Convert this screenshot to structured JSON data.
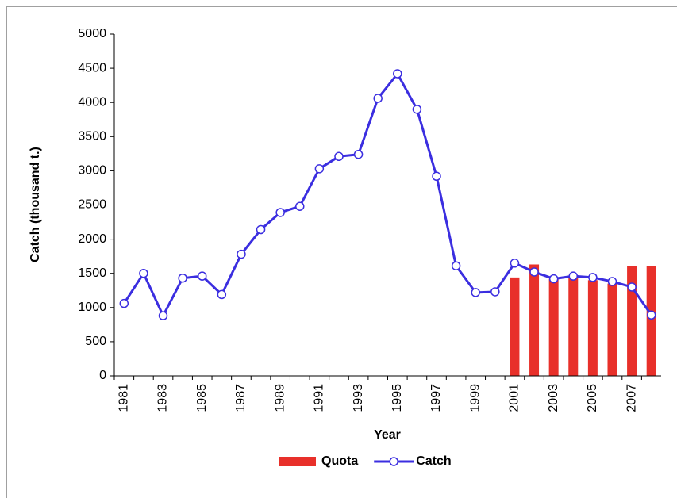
{
  "chart_data": {
    "type": "combo",
    "x_label": "Year",
    "y_label": "Catch  (thousand  t.)",
    "categories": [
      "1981",
      null,
      "1983",
      null,
      "1985",
      null,
      "1987",
      null,
      "1989",
      null,
      "1991",
      null,
      "1993",
      null,
      "1995",
      null,
      "1997",
      null,
      "1999",
      null,
      "2001",
      null,
      "2003",
      null,
      "2005",
      null,
      "2007",
      null
    ],
    "series": [
      {
        "name": "Quota",
        "type": "bar",
        "color": "#e8302a",
        "values": [
          null,
          null,
          null,
          null,
          null,
          null,
          null,
          null,
          null,
          null,
          null,
          null,
          null,
          null,
          null,
          null,
          null,
          null,
          null,
          null,
          1440,
          1630,
          1420,
          1450,
          1400,
          1350,
          1610,
          1610
        ]
      },
      {
        "name": "Catch",
        "type": "line",
        "color": "#3b2ee0",
        "values": [
          1060,
          1500,
          880,
          1430,
          1460,
          1190,
          1780,
          2140,
          2390,
          2480,
          3030,
          3210,
          3240,
          4060,
          4420,
          3900,
          2920,
          1610,
          1220,
          1230,
          1650,
          1520,
          1420,
          1460,
          1440,
          1380,
          1300,
          890
        ]
      }
    ],
    "ylim": [
      0,
      5000
    ],
    "yticks": [
      0,
      500,
      1000,
      1500,
      2000,
      2500,
      3000,
      3500,
      4000,
      4500,
      5000
    ],
    "grid": false,
    "legend": "bottom"
  }
}
